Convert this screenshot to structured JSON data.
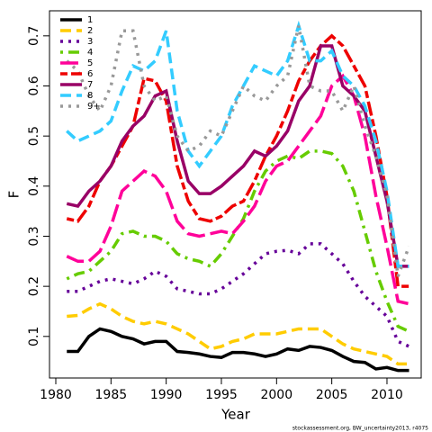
{
  "chart_data": {
    "type": "line",
    "xlabel": "Year",
    "ylabel": "F",
    "footnote": "stockassessment.org, BW_uncertainty2013, r4075",
    "legend": "top-left",
    "x": [
      1981,
      1982,
      1983,
      1984,
      1985,
      1986,
      1987,
      1988,
      1989,
      1990,
      1991,
      1992,
      1993,
      1994,
      1995,
      1996,
      1997,
      1998,
      1999,
      2000,
      2001,
      2002,
      2003,
      2004,
      2005,
      2006,
      2007,
      2008,
      2009,
      2010,
      2011,
      2012
    ],
    "xlim": [
      1979.43,
      2013.1
    ],
    "xticks": [
      1980,
      1985,
      1990,
      1995,
      2000,
      2005,
      2010
    ],
    "ylim": [
      0.017,
      0.75
    ],
    "yticks": [
      0.1,
      0.2,
      0.3,
      0.4,
      0.5,
      0.6,
      0.7
    ],
    "series": [
      {
        "name": "1",
        "color": "#000000",
        "line_style": "solid",
        "values": [
          0.07,
          0.07,
          0.1,
          0.115,
          0.11,
          0.1,
          0.095,
          0.085,
          0.09,
          0.09,
          0.07,
          0.068,
          0.065,
          0.06,
          0.058,
          0.068,
          0.068,
          0.065,
          0.06,
          0.065,
          0.075,
          0.072,
          0.08,
          0.078,
          0.072,
          0.06,
          0.05,
          0.048,
          0.035,
          0.038,
          0.032,
          0.032
        ]
      },
      {
        "name": "2",
        "color": "#ffcc00",
        "line_style": "dashed",
        "values": [
          0.14,
          0.142,
          0.155,
          0.165,
          0.155,
          0.14,
          0.13,
          0.125,
          0.13,
          0.125,
          0.115,
          0.105,
          0.09,
          0.075,
          0.08,
          0.09,
          0.095,
          0.105,
          0.105,
          0.105,
          0.11,
          0.115,
          0.115,
          0.115,
          0.1,
          0.085,
          0.075,
          0.07,
          0.065,
          0.06,
          0.045,
          0.045
        ]
      },
      {
        "name": "3",
        "color": "#660099",
        "line_style": "dotted",
        "values": [
          0.19,
          0.19,
          0.2,
          0.21,
          0.215,
          0.21,
          0.205,
          0.215,
          0.23,
          0.22,
          0.195,
          0.19,
          0.185,
          0.185,
          0.195,
          0.21,
          0.225,
          0.245,
          0.265,
          0.27,
          0.272,
          0.265,
          0.285,
          0.285,
          0.265,
          0.245,
          0.21,
          0.18,
          0.16,
          0.14,
          0.09,
          0.08
        ]
      },
      {
        "name": "4",
        "color": "#66cc00",
        "line_style": "dotdash",
        "values": [
          0.215,
          0.225,
          0.23,
          0.25,
          0.27,
          0.305,
          0.31,
          0.3,
          0.3,
          0.29,
          0.265,
          0.255,
          0.25,
          0.24,
          0.265,
          0.3,
          0.335,
          0.39,
          0.43,
          0.45,
          0.46,
          0.455,
          0.47,
          0.47,
          0.465,
          0.44,
          0.39,
          0.31,
          0.23,
          0.17,
          0.12,
          0.11
        ]
      },
      {
        "name": "5",
        "color": "#ff0099",
        "line_style": "longdash",
        "values": [
          0.26,
          0.25,
          0.25,
          0.27,
          0.32,
          0.39,
          0.41,
          0.43,
          0.42,
          0.39,
          0.33,
          0.305,
          0.3,
          0.305,
          0.31,
          0.305,
          0.33,
          0.36,
          0.41,
          0.44,
          0.45,
          0.48,
          0.51,
          0.54,
          0.6,
          0.62,
          0.58,
          0.5,
          0.38,
          0.28,
          0.17,
          0.165
        ]
      },
      {
        "name": "6",
        "color": "#ee0000",
        "line_style": "twodash",
        "values": [
          0.335,
          0.33,
          0.36,
          0.41,
          0.44,
          0.48,
          0.52,
          0.615,
          0.61,
          0.57,
          0.44,
          0.37,
          0.335,
          0.33,
          0.34,
          0.36,
          0.37,
          0.41,
          0.46,
          0.5,
          0.55,
          0.61,
          0.65,
          0.68,
          0.7,
          0.68,
          0.64,
          0.6,
          0.5,
          0.38,
          0.2,
          0.2
        ]
      },
      {
        "name": "7",
        "color": "#990066",
        "line_style": "solid",
        "values": [
          0.365,
          0.36,
          0.39,
          0.41,
          0.44,
          0.49,
          0.52,
          0.54,
          0.58,
          0.59,
          0.49,
          0.41,
          0.385,
          0.385,
          0.4,
          0.42,
          0.44,
          0.47,
          0.46,
          0.48,
          0.51,
          0.57,
          0.6,
          0.68,
          0.68,
          0.6,
          0.58,
          0.55,
          0.46,
          0.37,
          0.24,
          0.24
        ]
      },
      {
        "name": "8",
        "color": "#33ccff",
        "line_style": "dashed",
        "values": [
          0.51,
          0.49,
          0.5,
          0.51,
          0.53,
          0.59,
          0.64,
          0.63,
          0.65,
          0.71,
          0.55,
          0.47,
          0.44,
          0.47,
          0.5,
          0.56,
          0.6,
          0.64,
          0.63,
          0.62,
          0.65,
          0.72,
          0.65,
          0.65,
          0.67,
          0.62,
          0.6,
          0.56,
          0.49,
          0.39,
          0.24,
          0.24
        ]
      },
      {
        "name": "9+",
        "color": "#999999",
        "line_style": "dotted",
        "values": [
          0.65,
          0.63,
          0.58,
          0.55,
          0.6,
          0.71,
          0.71,
          0.6,
          0.57,
          0.58,
          0.5,
          0.47,
          0.48,
          0.51,
          0.5,
          0.55,
          0.6,
          0.58,
          0.57,
          0.6,
          0.62,
          0.72,
          0.6,
          0.59,
          0.59,
          0.55,
          0.6,
          0.52,
          0.46,
          0.38,
          0.22,
          0.28
        ]
      }
    ]
  }
}
